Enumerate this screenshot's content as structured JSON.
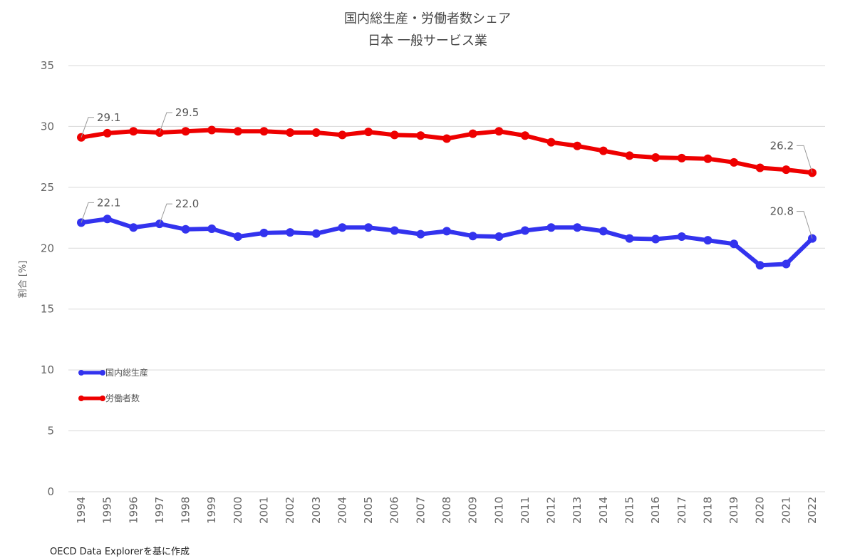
{
  "chart_data": {
    "type": "line",
    "title": "国内総生産・労働者数シェア",
    "subtitle": "日本 一般サービス業",
    "xlabel": "",
    "ylabel": "割合 [%]",
    "ylim": [
      0,
      35
    ],
    "yticks": [
      0,
      5,
      10,
      15,
      20,
      25,
      30,
      35
    ],
    "grid": true,
    "legend_position": "middle-left",
    "x": [
      1994,
      1995,
      1996,
      1997,
      1998,
      1999,
      2000,
      2001,
      2002,
      2003,
      2004,
      2005,
      2006,
      2007,
      2008,
      2009,
      2010,
      2011,
      2012,
      2013,
      2014,
      2015,
      2016,
      2017,
      2018,
      2019,
      2020,
      2021,
      2022
    ],
    "series": [
      {
        "name": "国内総生産",
        "color": "#3333ee",
        "values": [
          22.1,
          22.4,
          21.7,
          22.0,
          21.55,
          21.6,
          20.95,
          21.25,
          21.3,
          21.2,
          21.7,
          21.7,
          21.45,
          21.15,
          21.4,
          21.0,
          20.95,
          21.45,
          21.7,
          21.7,
          21.4,
          20.8,
          20.75,
          20.95,
          20.65,
          20.35,
          18.6,
          18.7,
          20.8
        ]
      },
      {
        "name": "労働者数",
        "color": "#ee0000",
        "values": [
          29.1,
          29.45,
          29.6,
          29.5,
          29.6,
          29.7,
          29.6,
          29.6,
          29.5,
          29.5,
          29.3,
          29.55,
          29.3,
          29.25,
          29.0,
          29.4,
          29.6,
          29.25,
          28.7,
          28.4,
          28.0,
          27.6,
          27.45,
          27.4,
          27.35,
          27.05,
          26.6,
          26.45,
          26.2
        ]
      }
    ],
    "annotations": [
      {
        "series": 1,
        "year": 1994,
        "text": "29.1"
      },
      {
        "series": 1,
        "year": 1997,
        "text": "29.5"
      },
      {
        "series": 1,
        "year": 2022,
        "text": "26.2"
      },
      {
        "series": 0,
        "year": 1994,
        "text": "22.1"
      },
      {
        "series": 0,
        "year": 1997,
        "text": "22.0"
      },
      {
        "series": 0,
        "year": 2022,
        "text": "20.8"
      }
    ],
    "source": "OECD Data Explorerを基に作成"
  }
}
